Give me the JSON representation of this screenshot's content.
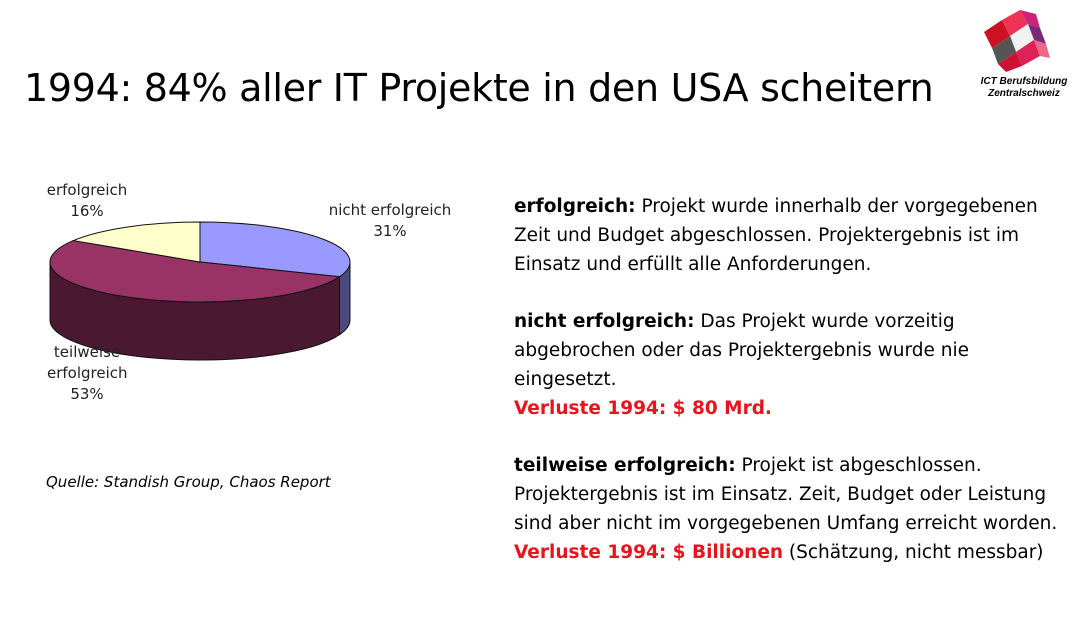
{
  "slide": {
    "title": "1994: 84% aller IT Projekte in den USA scheitern",
    "source": "Quelle: Standish Group, Chaos Report"
  },
  "logo": {
    "line1": "ICT Berufsbildung",
    "line2": "Zentralschweiz"
  },
  "definitions": [
    {
      "term": "erfolgreich:",
      "text": "Projekt wurde innerhalb der vorgegebenen Zeit und Budget abgeschlossen. Projektergebnis ist im Einsatz und erfüllt alle Anforderungen."
    },
    {
      "term": "nicht erfolgreich:",
      "text": "Das Projekt wurde vorzeitig abgebrochen oder das Projektergebnis wurde nie eingesetzt.",
      "loss_label": "Verluste 1994: $ 80 Mrd.",
      "loss_note": ""
    },
    {
      "term": "teilweise erfolgreich:",
      "text": "Projekt ist abgeschlossen. Projektergebnis ist im Einsatz. Zeit, Budget oder Leistung sind aber nicht im vorgegebenen Umfang erreicht worden.",
      "loss_label": "Verluste 1994: $ Billionen",
      "loss_note": " (Schätzung, nicht messbar)"
    }
  ],
  "chart_data": {
    "type": "pie",
    "title": "",
    "slices": [
      {
        "label": "nicht erfolgreich",
        "value": 31,
        "value_label": "31%",
        "color": "#9999ff",
        "side_color": "#4a4a80"
      },
      {
        "label": "teilweise erfolgreich",
        "value": 53,
        "value_label": "53%",
        "color": "#993366",
        "side_color": "#4a1830"
      },
      {
        "label": "erfolgreich",
        "value": 16,
        "value_label": "16%",
        "color": "#ffffcc",
        "side_color": "#8a8a6a"
      }
    ],
    "style": "3d",
    "start_angle_deg": -90,
    "legend": "none"
  }
}
